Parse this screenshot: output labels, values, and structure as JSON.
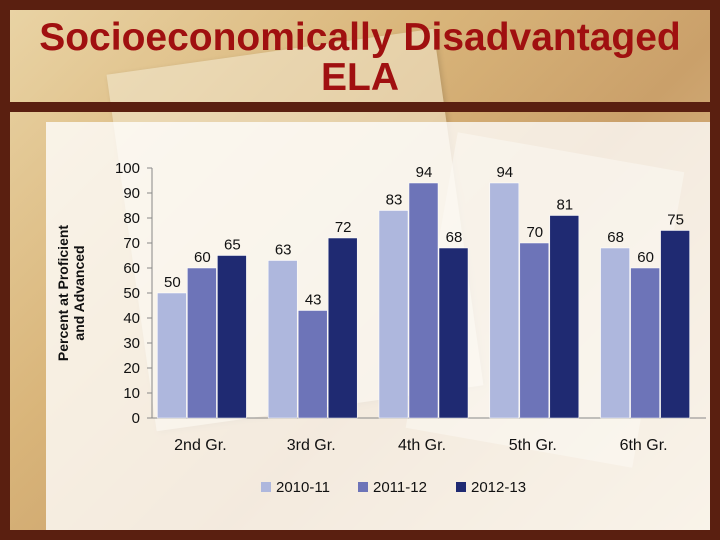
{
  "slide": {
    "title_line1": "Socioeconomically Disadvantaged",
    "title_line2": "ELA"
  },
  "colors": {
    "frame": "#5a1f10",
    "title": "#a01010",
    "series": [
      "#aeb7dd",
      "#6d74b8",
      "#1f2a72"
    ]
  },
  "chart_data": {
    "type": "bar",
    "title": "",
    "ylabel": "Percent at Proficient and Advanced",
    "ylabel_lines": [
      "Percent at Proficient",
      "and Advanced"
    ],
    "xlabel": "",
    "ylim": [
      0,
      100
    ],
    "yticks": [
      0,
      10,
      20,
      30,
      40,
      50,
      60,
      70,
      80,
      90,
      100
    ],
    "categories": [
      "2nd Gr.",
      "3rd Gr.",
      "4th Gr.",
      "5th Gr.",
      "6th Gr."
    ],
    "series": [
      {
        "name": "2010-11",
        "values": [
          50,
          63,
          83,
          94,
          68
        ]
      },
      {
        "name": "2011-12",
        "values": [
          60,
          43,
          94,
          70,
          60
        ]
      },
      {
        "name": "2012-13",
        "values": [
          65,
          72,
          68,
          81,
          75
        ]
      }
    ],
    "legend": "bottom",
    "grid": false
  }
}
